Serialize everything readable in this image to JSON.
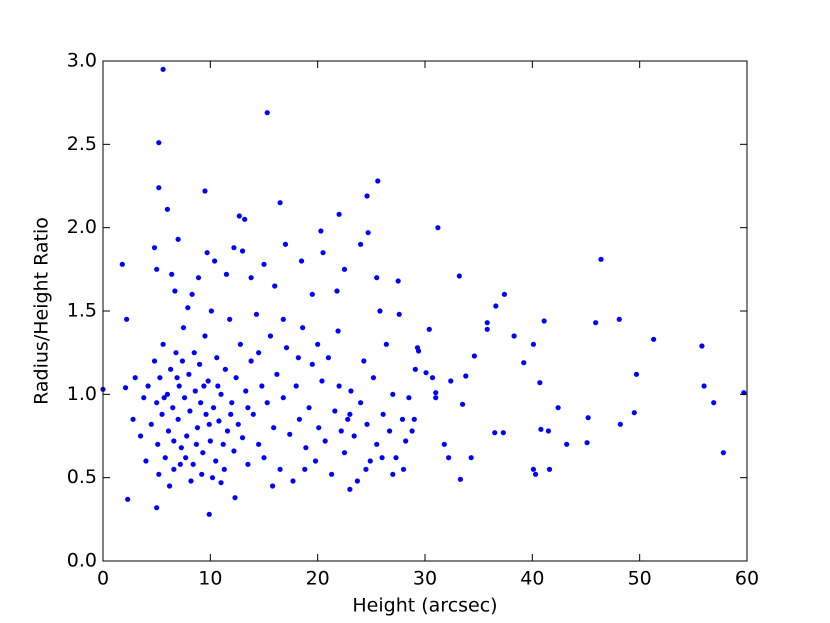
{
  "chart_data": {
    "type": "scatter",
    "x_label": "Height (arcsec)",
    "y_label": "Radius/Height Ratio",
    "xlim": [
      0,
      60
    ],
    "xticks": [
      0,
      10,
      20,
      30,
      40,
      50,
      60
    ],
    "ylim": [
      0,
      3
    ],
    "yticks": [
      {
        "value": 0,
        "label": "0.0"
      },
      {
        "value": 0.5,
        "label": "0.5"
      },
      {
        "value": 1,
        "label": "1.0"
      },
      {
        "value": 1.5,
        "label": "1.5"
      },
      {
        "value": 2,
        "label": "2.0"
      },
      {
        "value": 2.5,
        "label": "2.5"
      },
      {
        "value": 3,
        "label": "3.0"
      }
    ],
    "color": "#0000ff",
    "x": [
      5.6,
      15.3,
      5.2,
      5.2,
      9.5,
      25.6,
      16.5,
      6.0,
      12.7,
      13.2,
      22.0,
      24.6,
      31.2,
      20.3,
      24.7,
      1.8,
      2.2,
      2.1,
      0,
      2.3,
      5.0,
      9.9,
      46.4,
      37.4,
      33.2,
      51.3,
      48.1,
      45.9,
      41.1,
      40.1,
      55.8,
      56.0,
      56.9,
      59.7,
      57.8,
      49.7,
      49.5,
      48.2,
      45.2,
      45.1,
      43.2,
      42.4,
      41.5,
      40.7,
      40.1,
      40.3,
      41.6,
      40.8,
      39.2,
      38.3,
      36.6,
      35.8,
      35.8,
      34.6,
      33.8,
      33.5,
      33.3,
      32.4,
      34.3,
      32.2,
      31.8,
      31.0,
      31.0,
      30.7,
      30.1,
      30.4,
      29.3,
      29.4,
      37.3,
      36.5,
      4.2,
      4.5,
      4.8,
      5.0,
      5.1,
      5.3,
      5.5,
      5.6,
      5.8,
      6.0,
      6.1,
      6.3,
      6.5,
      6.6,
      6.8,
      7.0,
      7.1,
      7.3,
      7.5,
      7.6,
      7.8,
      8.0,
      8.1,
      8.3,
      8.4,
      8.6,
      8.8,
      9.0,
      9.1,
      9.3,
      9.5,
      9.6,
      9.8,
      10.0,
      10.1,
      10.3,
      10.5,
      10.6,
      10.8,
      11.0,
      11.2,
      11.4,
      11.6,
      11.8,
      12.0,
      12.2,
      12.4,
      12.6,
      12.8,
      13.0,
      13.3,
      13.5,
      13.8,
      14.0,
      14.3,
      14.5,
      14.8,
      15.0,
      15.3,
      15.6,
      15.9,
      16.2,
      16.5,
      16.8,
      17.1,
      17.4,
      17.7,
      18.0,
      18.3,
      18.6,
      18.9,
      19.2,
      19.5,
      19.8,
      20.1,
      20.4,
      20.7,
      21.0,
      21.3,
      21.6,
      21.9,
      22.2,
      22.5,
      22.8,
      23.1,
      23.4,
      23.7,
      24.0,
      24.3,
      24.6,
      24.9,
      25.2,
      25.5,
      25.8,
      26.1,
      26.4,
      26.7,
      27.0,
      27.3,
      27.6,
      27.9,
      28.2,
      28.5,
      28.8,
      29.1,
      5.2,
      6.2,
      7.2,
      8.2,
      9.2,
      10.2,
      11.3,
      12.3,
      6.4,
      7.0,
      8.9,
      9.7,
      10.4,
      11.5,
      12.2,
      13.0,
      4.8,
      5.0,
      6.7,
      7.9,
      4.0,
      3.5,
      2.8,
      3.0,
      3.8,
      6.9,
      7.4,
      8.5,
      9.4,
      10.7,
      11.9,
      6.6,
      7.7,
      9.9,
      8.7,
      5.7,
      16.0,
      17.0,
      18.5,
      19.5,
      20.5,
      21.8,
      22.5,
      24.0,
      25.5,
      27.5,
      13.8,
      15.0,
      14.5,
      16.8,
      18.2,
      20.0,
      22.0,
      23.0,
      24.5,
      26.0,
      27.0,
      28.0,
      29.0,
      23.0,
      18.8,
      15.8,
      13.5,
      11.0
    ],
    "values": [
      2.95,
      2.69,
      2.51,
      2.24,
      2.22,
      2.28,
      2.15,
      2.11,
      2.07,
      2.05,
      2.08,
      2.19,
      2.0,
      1.98,
      1.97,
      1.78,
      1.45,
      1.04,
      1.03,
      0.37,
      0.32,
      0.28,
      1.81,
      1.6,
      1.71,
      1.33,
      1.45,
      1.43,
      1.44,
      1.3,
      1.29,
      1.05,
      0.95,
      1.01,
      0.65,
      1.12,
      0.89,
      0.82,
      0.86,
      0.71,
      0.7,
      0.92,
      0.78,
      1.07,
      0.55,
      0.52,
      0.55,
      0.79,
      1.19,
      1.35,
      1.53,
      1.43,
      1.39,
      1.23,
      1.11,
      0.94,
      0.49,
      1.08,
      0.62,
      0.62,
      0.7,
      1.01,
      0.98,
      1.1,
      1.13,
      1.39,
      1.28,
      1.26,
      0.77,
      0.77,
      1.05,
      0.82,
      1.2,
      0.95,
      0.7,
      1.1,
      0.88,
      1.3,
      0.62,
      1.0,
      0.78,
      1.15,
      0.92,
      0.55,
      1.25,
      0.85,
      1.05,
      0.68,
      1.4,
      0.98,
      0.75,
      1.12,
      0.9,
      1.6,
      0.58,
      1.02,
      0.8,
      1.18,
      0.95,
      0.65,
      1.35,
      0.88,
      1.08,
      0.72,
      1.5,
      0.92,
      0.6,
      1.22,
      0.84,
      1.0,
      0.7,
      1.15,
      0.78,
      1.45,
      0.95,
      0.66,
      1.1,
      0.82,
      1.3,
      0.74,
      1.02,
      0.58,
      1.2,
      0.88,
      1.48,
      0.7,
      1.05,
      0.62,
      0.95,
      1.35,
      0.8,
      1.12,
      0.55,
      0.98,
      1.28,
      0.76,
      0.48,
      1.05,
      0.85,
      1.4,
      0.68,
      0.92,
      1.18,
      0.6,
      0.8,
      1.08,
      0.72,
      1.22,
      0.52,
      0.9,
      1.38,
      0.78,
      0.65,
      0.85,
      1.02,
      0.75,
      0.48,
      0.95,
      1.2,
      0.82,
      0.6,
      1.1,
      0.7,
      1.5,
      0.88,
      1.3,
      0.78,
      1.0,
      0.62,
      1.48,
      0.85,
      0.72,
      0.98,
      0.78,
      1.15,
      0.52,
      0.45,
      0.58,
      0.48,
      0.52,
      0.5,
      0.55,
      0.38,
      1.72,
      1.93,
      1.7,
      1.85,
      1.8,
      1.72,
      1.88,
      1.86,
      1.88,
      1.75,
      1.62,
      1.52,
      0.6,
      0.75,
      0.85,
      1.1,
      0.98,
      1.1,
      1.2,
      1.25,
      1.05,
      1.05,
      0.88,
      0.72,
      0.62,
      0.82,
      0.7,
      0.98,
      1.65,
      1.9,
      1.8,
      1.6,
      1.85,
      1.62,
      1.75,
      1.9,
      1.7,
      1.68,
      1.7,
      1.78,
      1.25,
      1.45,
      1.22,
      1.3,
      1.05,
      0.88,
      0.55,
      0.62,
      0.52,
      0.55,
      0.85,
      0.43,
      0.55,
      0.45,
      0.92,
      0.47
    ]
  }
}
